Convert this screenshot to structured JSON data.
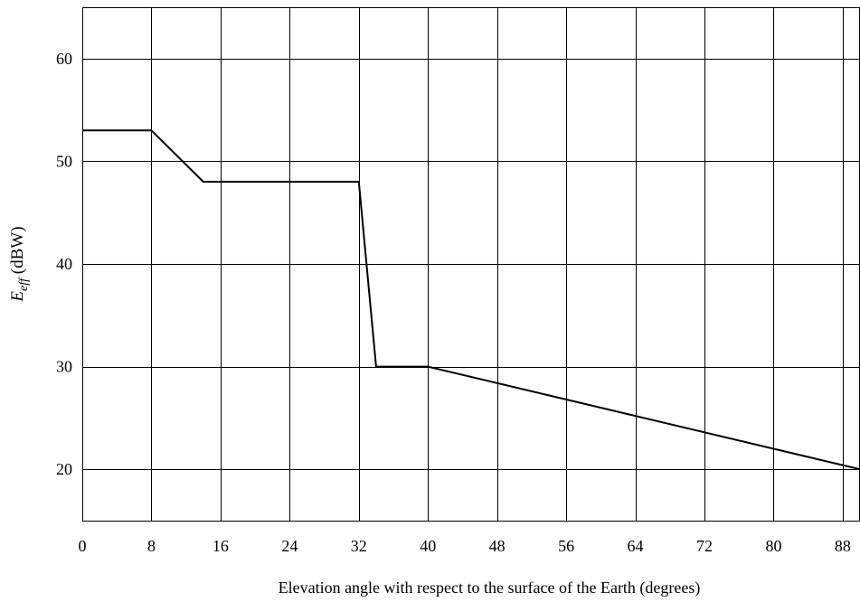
{
  "chart_data": {
    "type": "line",
    "title": "",
    "xlabel": "Elevation angle with respect to the surface of the Earth (degrees)",
    "ylabel": {
      "base": "E",
      "subscript": "eff",
      "unit": " (dBW)"
    },
    "xlim": [
      0,
      90
    ],
    "ylim": [
      15,
      65
    ],
    "x_ticks": [
      0,
      8,
      16,
      24,
      32,
      40,
      48,
      56,
      64,
      72,
      80,
      88
    ],
    "y_ticks": [
      20,
      30,
      40,
      50,
      60
    ],
    "grid": true,
    "legend": "none",
    "series": [
      {
        "x": [
          0,
          8,
          14,
          32,
          34,
          40,
          90
        ],
        "y": [
          53,
          53,
          48,
          48,
          30,
          30,
          20
        ]
      }
    ]
  },
  "colors": {
    "line": "#000000",
    "grid": "#000000",
    "background": "#ffffff"
  }
}
